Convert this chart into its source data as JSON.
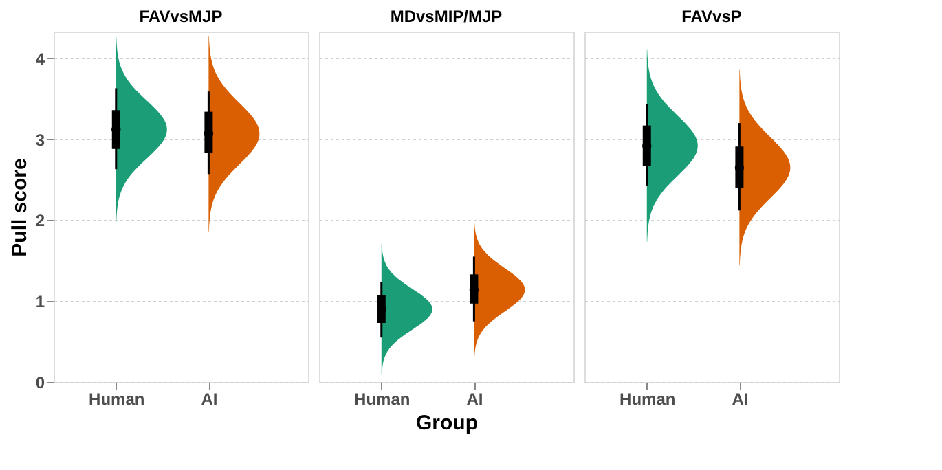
{
  "chart_data": [
    {
      "type": "box",
      "title": "FAVvsMJP",
      "ylabel": "Pull score",
      "categories": [
        "Human",
        "AI"
      ],
      "colors": [
        "#000000",
        "#000000"
      ],
      "ylim": [
        0,
        4.33
      ],
      "yticks": [
        0,
        1,
        2,
        3,
        4
      ],
      "grid": "y",
      "boxes": [
        {
          "low": 2.63,
          "q1": 2.88,
          "median": 3.12,
          "q3": 3.36,
          "high": 3.63
        },
        {
          "low": 2.57,
          "q1": 2.83,
          "median": 3.07,
          "q3": 3.34,
          "high": 3.59
        }
      ]
    },
    {
      "type": "box",
      "title": "MDvsMIP/MJP",
      "xlabel": "Group",
      "categories": [
        "Human",
        "AI"
      ],
      "colors": [
        "#000000",
        "#000000"
      ],
      "ylim": [
        0,
        4.33
      ],
      "yticks": [
        0,
        1,
        2,
        3,
        4
      ],
      "grid": "y",
      "tick_labels": "x",
      "boxes": [
        {
          "low": 0.55,
          "q1": 0.73,
          "median": 0.9,
          "q3": 1.07,
          "high": 1.24
        },
        {
          "low": 0.75,
          "q1": 0.97,
          "median": 1.14,
          "q3": 1.33,
          "high": 1.55
        }
      ]
    },
    {
      "type": "box",
      "title": "FAVvsP",
      "categories": [
        "Human",
        "AI"
      ],
      "colors": [
        "#000000",
        "#000000"
      ],
      "ylim": [
        0,
        4.33
      ],
      "yticks": [
        0,
        1,
        2,
        3,
        4
      ],
      "grid": "y",
      "tick_labels": "x",
      "boxes": [
        {
          "low": 2.42,
          "q1": 2.67,
          "median": 2.92,
          "q3": 3.17,
          "high": 3.43
        },
        {
          "low": 2.12,
          "q1": 2.4,
          "median": 2.65,
          "q3": 2.91,
          "high": 3.2
        }
      ]
    }
  ]
}
